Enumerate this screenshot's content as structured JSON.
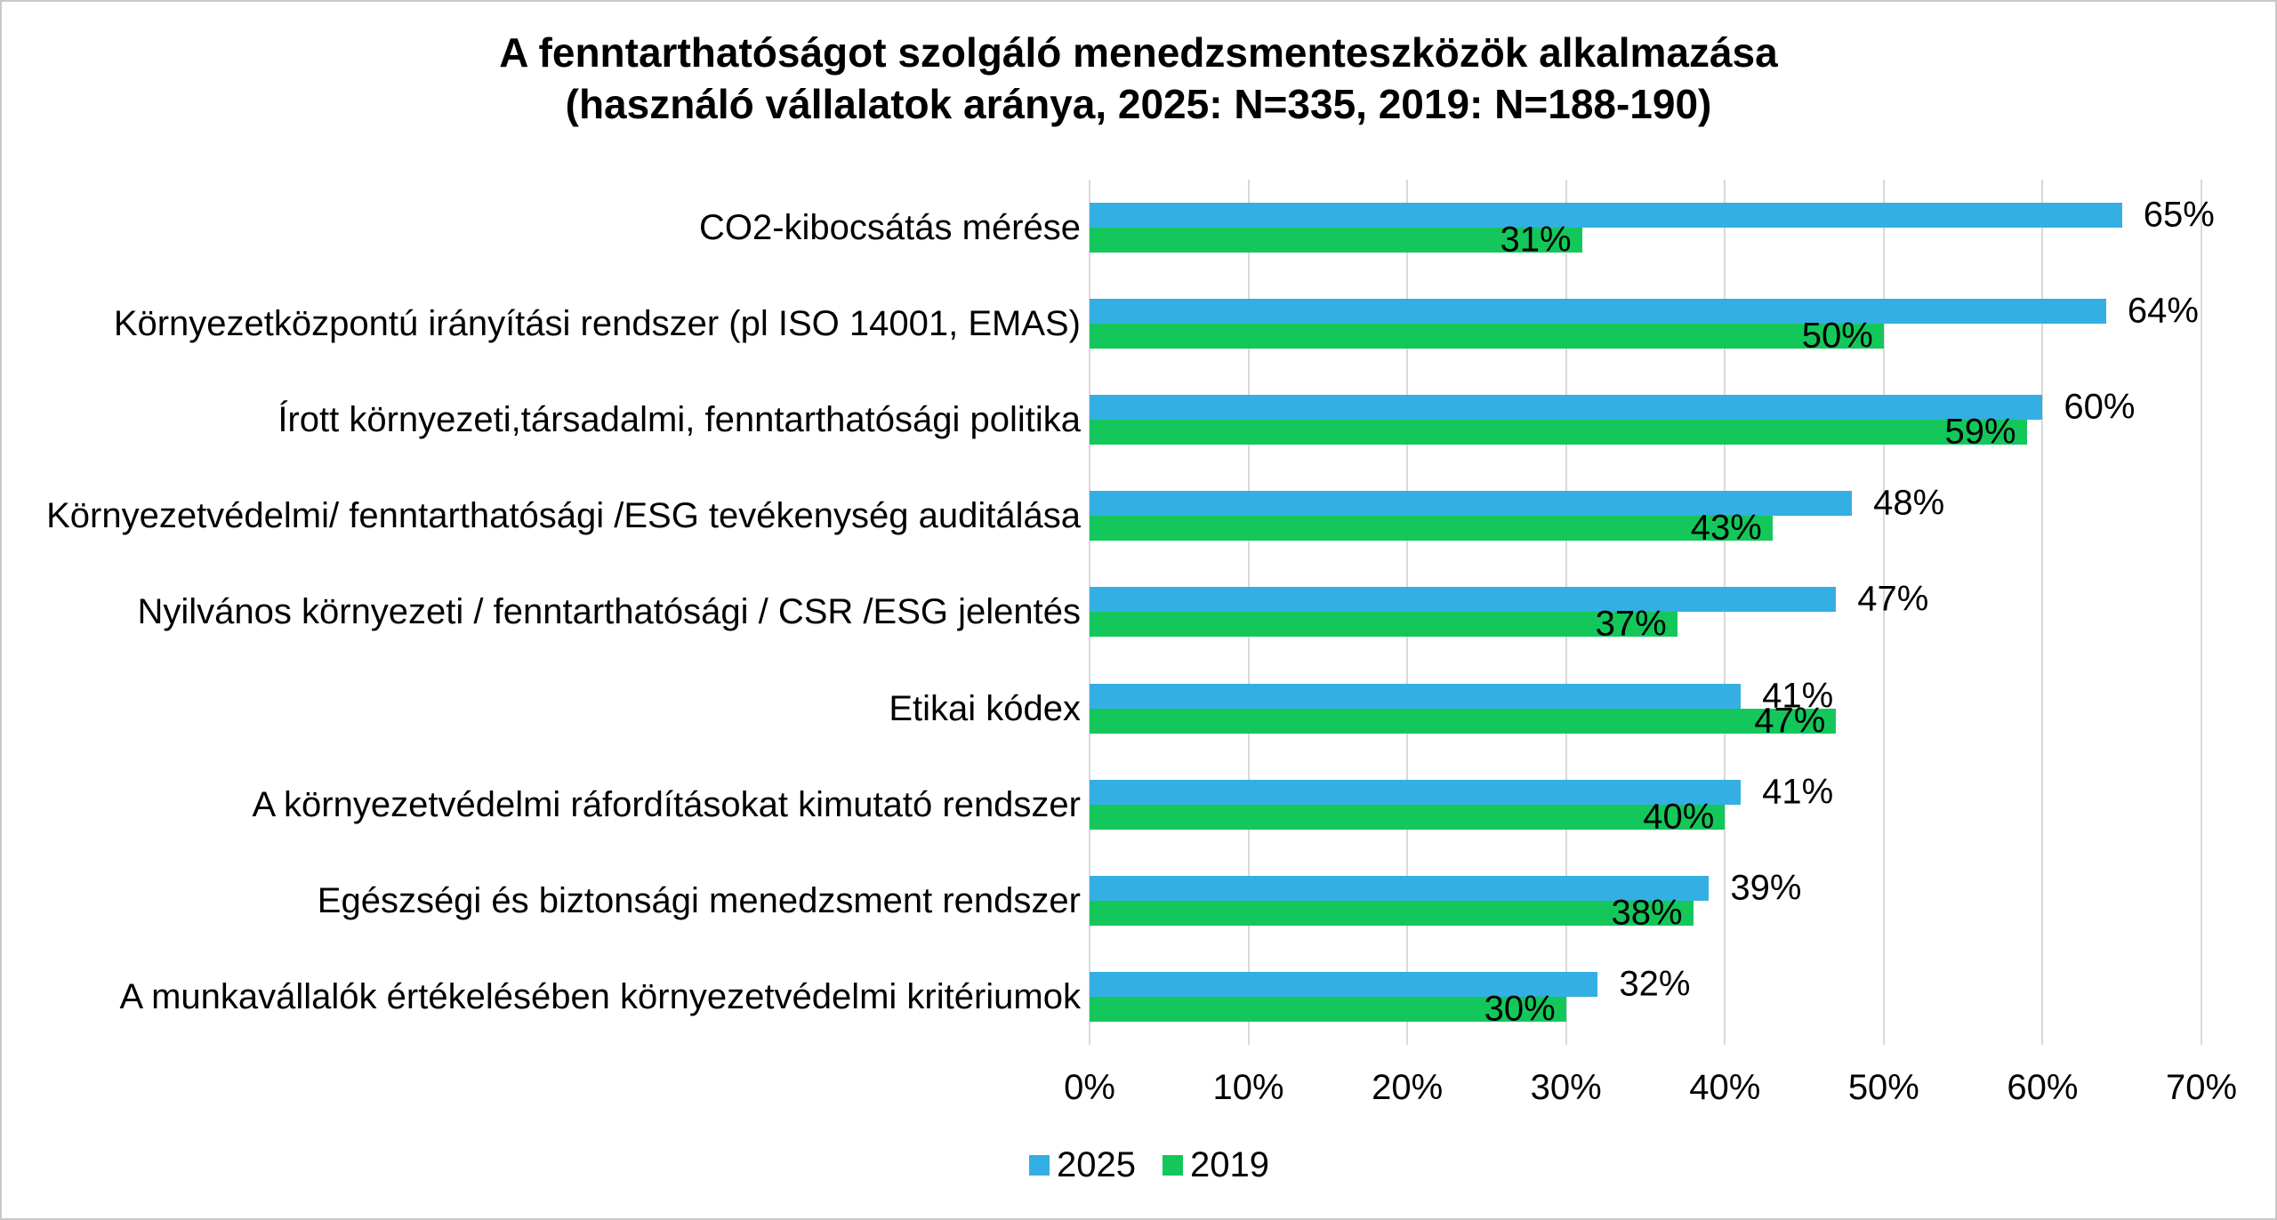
{
  "frame": {
    "background": "#ffffff",
    "border_color": "#c9c9c9"
  },
  "title": {
    "line1": "A fenntarthatóságot szolgáló menedzsmenteszközök alkalmazása",
    "line2": "(használó vállalatok aránya, 2025: N=335, 2019: N=188-190)"
  },
  "chart_data": {
    "type": "bar",
    "orientation": "horizontal",
    "title": "A fenntarthatóságot szolgáló menedzsmenteszközök alkalmazása (használó vállalatok aránya, 2025: N=335, 2019: N=188-190)",
    "categories": [
      "CO2-kibocsátás mérése",
      "Környezetközpontú irányítási rendszer (pl  ISO 14001, EMAS)",
      "Írott környezeti,társadalmi, fenntarthatósági politika",
      "Környezetvédelmi/ fenntarthatósági /ESG tevékenység auditálása",
      "Nyilvános környezeti / fenntarthatósági / CSR /ESG jelentés",
      "Etikai kódex",
      "A környezetvédelmi ráfordításokat kimutató rendszer",
      "Egészségi és biztonsági menedzsment rendszer",
      "A munkavállalók értékelésében környezetvédelmi kritériumok"
    ],
    "series": [
      {
        "name": "2025",
        "color": "#34afe3",
        "values": [
          65,
          64,
          60,
          48,
          47,
          41,
          41,
          39,
          32
        ],
        "label_position": "outside-end"
      },
      {
        "name": "2019",
        "color": "#14c75b",
        "values": [
          31,
          50,
          59,
          43,
          37,
          47,
          40,
          38,
          30
        ],
        "label_position": "inside-end"
      }
    ],
    "value_suffix": "%",
    "xlabel": "",
    "ylabel": "",
    "xlim": [
      0,
      70
    ],
    "x_ticks": [
      "0%",
      "10%",
      "20%",
      "30%",
      "40%",
      "50%",
      "60%",
      "70%"
    ],
    "grid": "vertical",
    "gridline_color": "#d9d9d9",
    "legend": {
      "position": "bottom-left",
      "items": [
        "2025",
        "2019"
      ]
    }
  }
}
